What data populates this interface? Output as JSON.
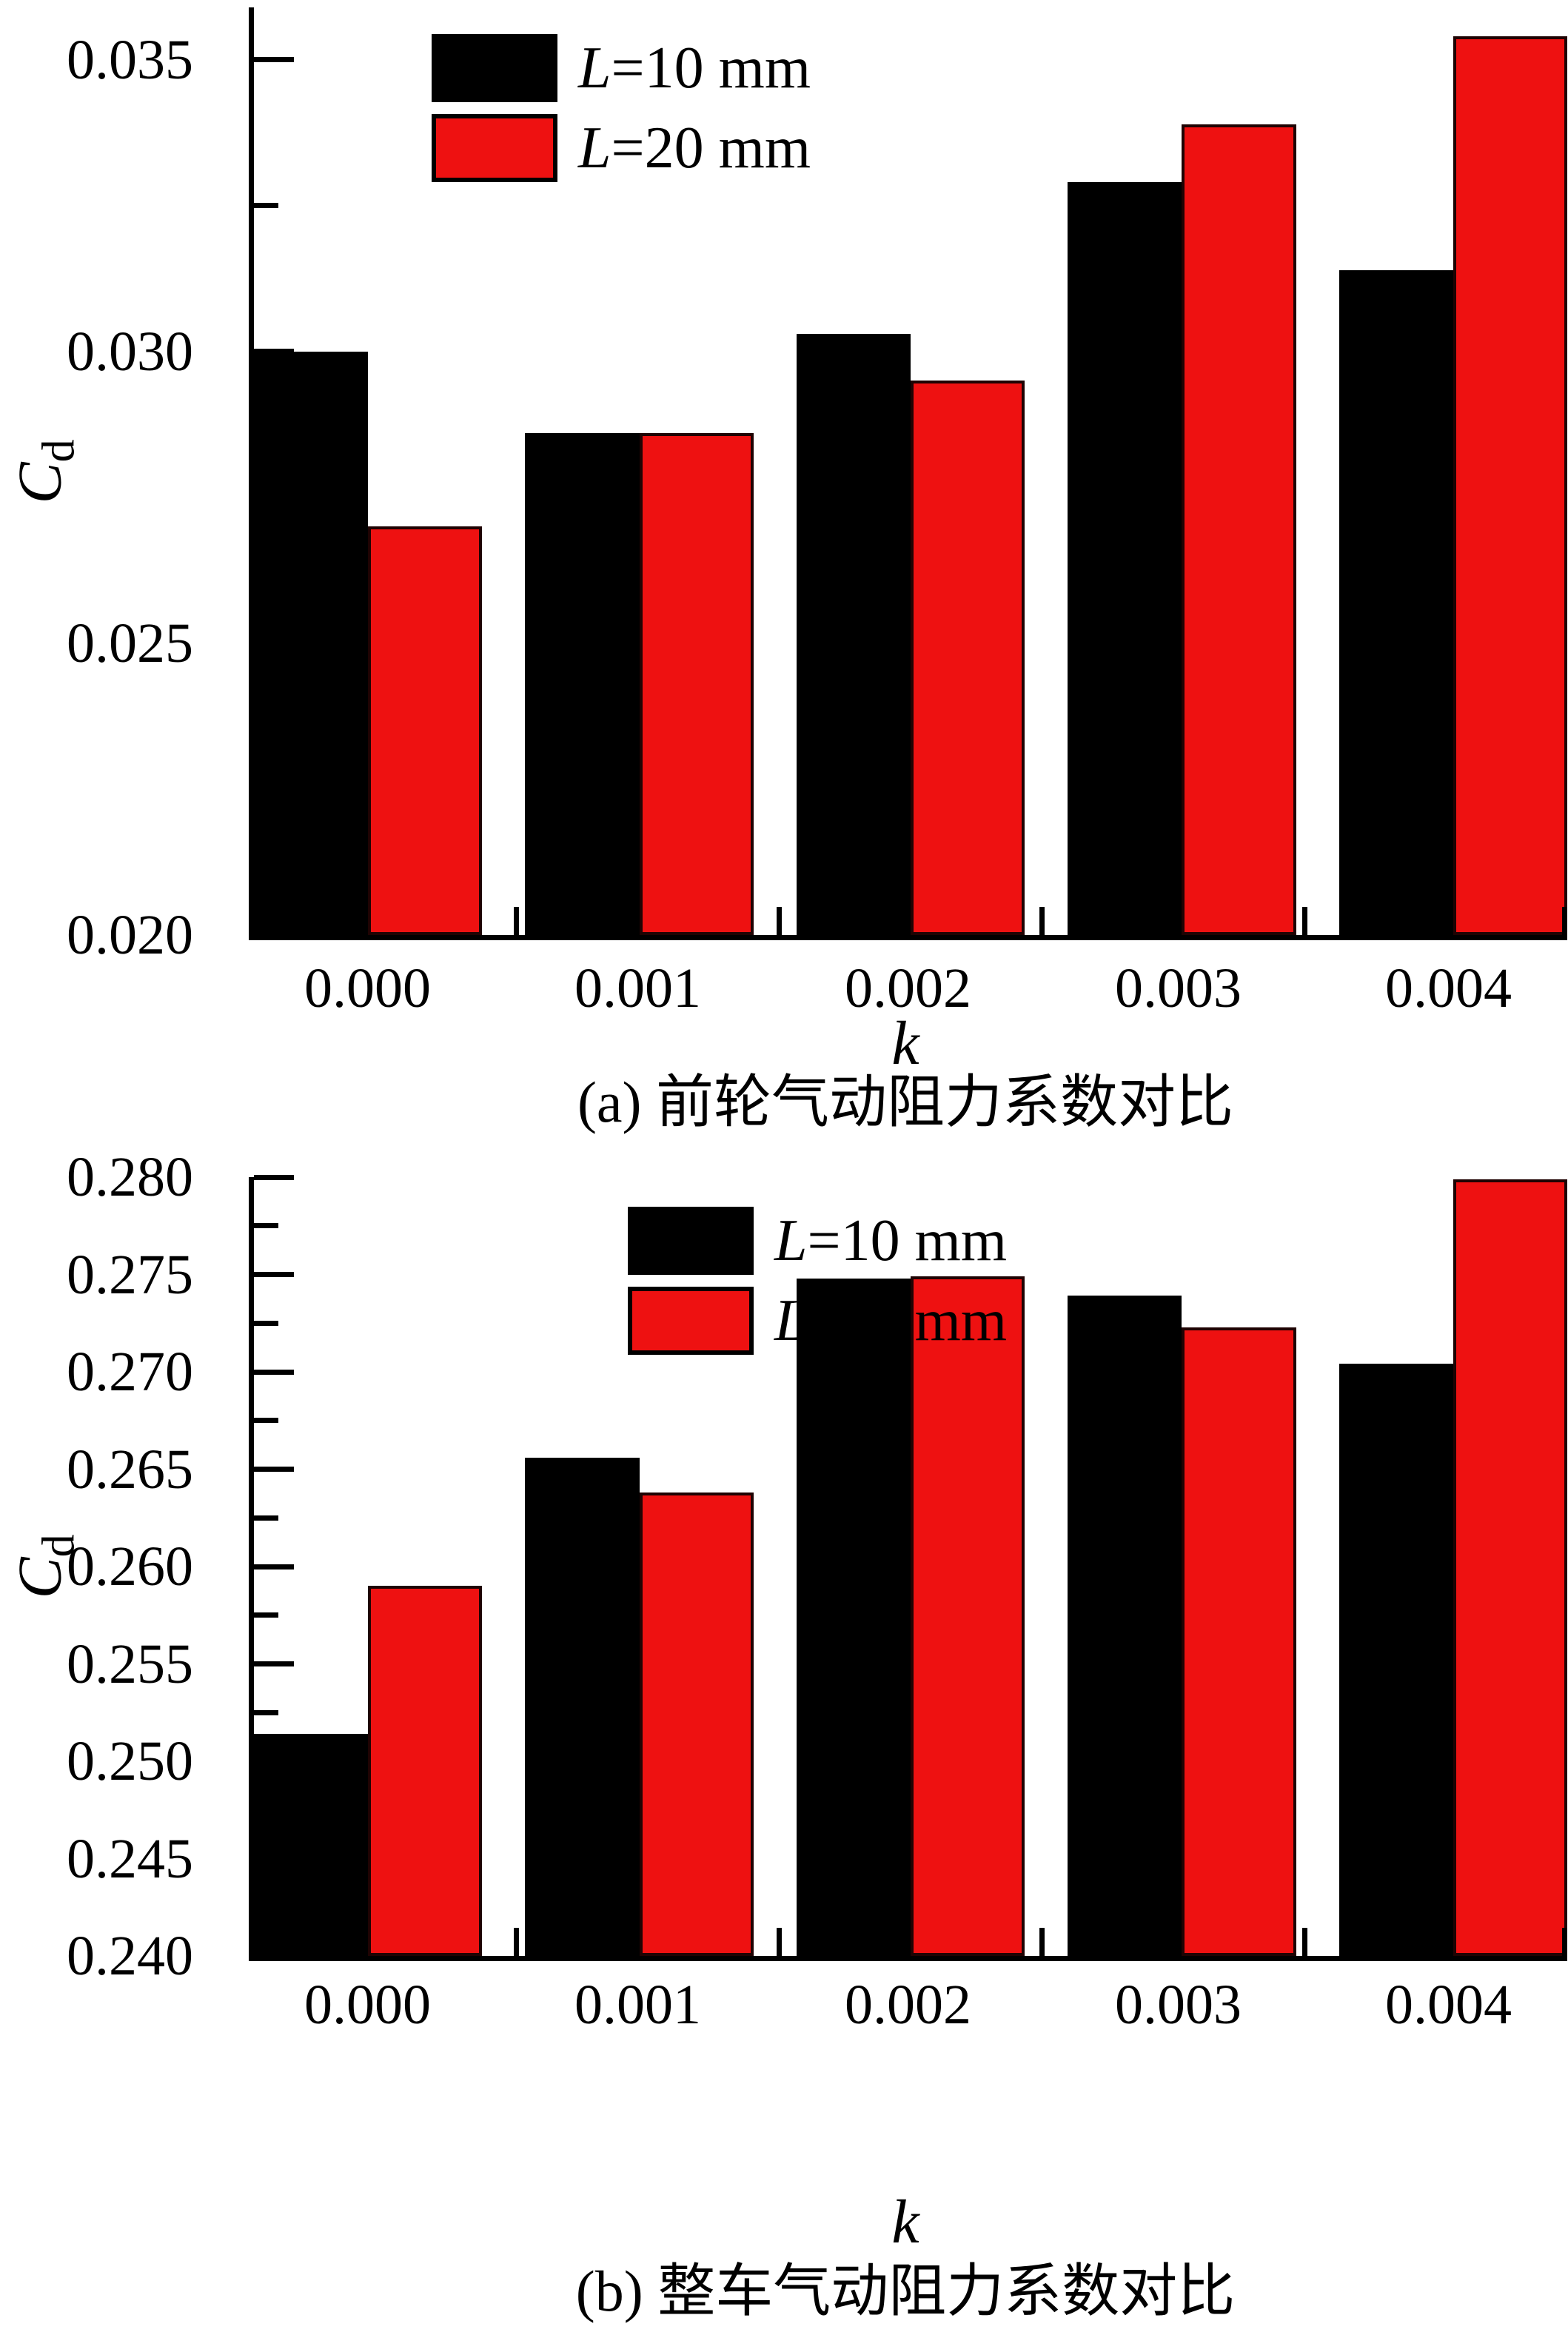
{
  "chart_data": [
    {
      "type": "bar",
      "panel": "a",
      "title": "(a) 前轮气动阻力系数对比",
      "xlabel": "k",
      "ylabel": "Cd",
      "ylabel_main": "C",
      "ylabel_sub": "d",
      "categories": [
        "0.000",
        "0.001",
        "0.002",
        "0.003",
        "0.004"
      ],
      "series": [
        {
          "name": "L=10 mm",
          "color": "#000000",
          "border": "#000000",
          "values": [
            0.03,
            0.0286,
            0.0303,
            0.0329,
            0.0314
          ]
        },
        {
          "name": "L=20 mm",
          "color": "#ee1111",
          "border": "#1f0303",
          "values": [
            0.027,
            0.0286,
            0.0295,
            0.0339,
            0.0354
          ]
        }
      ],
      "ylim": [
        0.02,
        0.0359
      ],
      "yticks": [
        0.02,
        0.025,
        0.03,
        0.035
      ],
      "ytick_labels": [
        "0.020",
        "0.025",
        "0.030",
        "0.035"
      ],
      "yminors": [
        0.0225,
        0.0275,
        0.0325
      ],
      "grid": false,
      "legend_position": "inside-top-left"
    },
    {
      "type": "bar",
      "panel": "b",
      "title": "(b) 整车气动阻力系数对比",
      "xlabel": "k",
      "ylabel": "Cd",
      "ylabel_main": "C",
      "ylabel_sub": "d",
      "categories": [
        "0.000",
        "0.001",
        "0.002",
        "0.003",
        "0.004"
      ],
      "series": [
        {
          "name": "L=10 mm",
          "color": "#000000",
          "border": "#000000",
          "values": [
            0.2514,
            0.2656,
            0.2748,
            0.2739,
            0.2704
          ]
        },
        {
          "name": "L=20 mm",
          "color": "#ee1111",
          "border": "#1f0303",
          "values": [
            0.259,
            0.2638,
            0.2749,
            0.2723,
            0.2799
          ]
        }
      ],
      "ylim": [
        0.24,
        0.28
      ],
      "yticks": [
        0.24,
        0.245,
        0.25,
        0.255,
        0.26,
        0.265,
        0.27,
        0.275,
        0.28
      ],
      "ytick_labels": [
        "0.240",
        "0.245",
        "0.250",
        "0.255",
        "0.260",
        "0.265",
        "0.270",
        "0.275",
        "0.280"
      ],
      "yminors": [
        0.2425,
        0.2475,
        0.2525,
        0.2575,
        0.2625,
        0.2675,
        0.2725,
        0.2775
      ],
      "grid": false,
      "legend_position": "inside-top-left"
    }
  ]
}
